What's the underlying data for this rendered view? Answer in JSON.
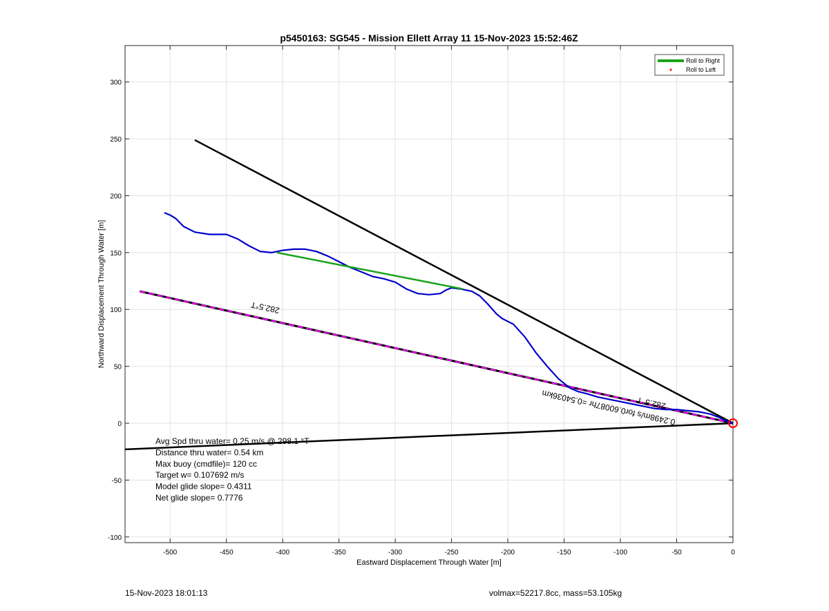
{
  "chart_data": {
    "type": "line",
    "title": "p5450163: SG545 - Mission Ellett Array 11 15-Nov-2023 15:52:46Z",
    "xlabel": "Eastward Displacement Through Water [m]",
    "ylabel": "Northward Displacement Through Water [m]",
    "xlim": [
      -540,
      0
    ],
    "ylim": [
      -105,
      332
    ],
    "xticks": [
      -500,
      -450,
      -400,
      -350,
      -300,
      -250,
      -200,
      -150,
      -100,
      -50,
      0
    ],
    "yticks": [
      -100,
      -50,
      0,
      50,
      100,
      150,
      200,
      250,
      300
    ],
    "grid": true,
    "legend_position": "top-right",
    "legend": [
      {
        "label": "Roll to Right",
        "color": "#1aa31a"
      },
      {
        "label": "Roll to Left",
        "color": "#ff0000"
      }
    ],
    "series": [
      {
        "name": "track",
        "color": "#0000cc",
        "x": [
          -505,
          -500,
          -495,
          -488,
          -478,
          -465,
          -450,
          -440,
          -430,
          -420,
          -410,
          -400,
          -390,
          -380,
          -370,
          -360,
          -350,
          -340,
          -330,
          -320,
          -310,
          -300,
          -290,
          -280,
          -270,
          -260,
          -255,
          -250,
          -242,
          -232,
          -225,
          -218,
          -210,
          -205,
          -195,
          -185,
          -175,
          -165,
          -155,
          -145,
          -138,
          -130,
          -120,
          -110,
          -100,
          -90,
          -80,
          -70,
          -60,
          -50,
          -40,
          -30,
          -20,
          -12,
          -6,
          0
        ],
        "y": [
          185,
          183,
          180,
          173,
          168,
          166,
          166,
          162,
          156,
          151,
          150,
          152,
          153,
          153,
          151,
          147,
          142,
          137,
          133,
          129,
          127,
          124,
          118,
          114,
          113,
          114,
          117,
          119,
          118,
          116,
          112,
          105,
          96,
          92,
          87,
          76,
          62,
          50,
          39,
          31,
          28,
          26,
          23,
          21,
          19,
          17,
          15,
          13,
          12,
          12,
          11,
          10,
          8,
          5,
          2,
          0
        ]
      },
      {
        "name": "roll to right segment",
        "color": "#1aa31a",
        "x": [
          -405,
          -240
        ],
        "y": [
          150,
          118
        ]
      },
      {
        "name": "heading line",
        "color": "#000000",
        "x": [
          -478,
          0
        ],
        "y": [
          249,
          0
        ]
      },
      {
        "name": "target line",
        "color": "#000000",
        "x": [
          -540,
          0
        ],
        "y": [
          -23,
          0
        ]
      },
      {
        "name": "course line",
        "color": "#ff00ff",
        "x": [
          -527,
          0
        ],
        "y": [
          116,
          0
        ]
      }
    ],
    "annotations": [
      {
        "text": "282.5°T",
        "x": -415,
        "y": 104,
        "rotate": 192.5
      },
      {
        "text": "282.5°T",
        "x": -72,
        "y": 20,
        "rotate": 192.5
      },
      {
        "text": "0.2498m/s for0.60087hr =0.54036km",
        "x": -110,
        "y": 16,
        "rotate": 192.5
      }
    ],
    "end_marker": {
      "x": 0,
      "y": 0,
      "color": "#ff0000"
    },
    "info_lines": [
      "Avg Spd thru water=  0.25 m/s @ 298.1 °T",
      "Distance thru water=  0.54 km",
      "Max buoy (cmdfile)= 120 cc",
      "Target w= 0.107692 m/s",
      "Model glide slope= 0.4311",
      "Net glide slope= 0.7776"
    ]
  },
  "footer": {
    "left": "15-Nov-2023 18:01:13",
    "right": "volmax=52217.8cc, mass=53.105kg"
  }
}
